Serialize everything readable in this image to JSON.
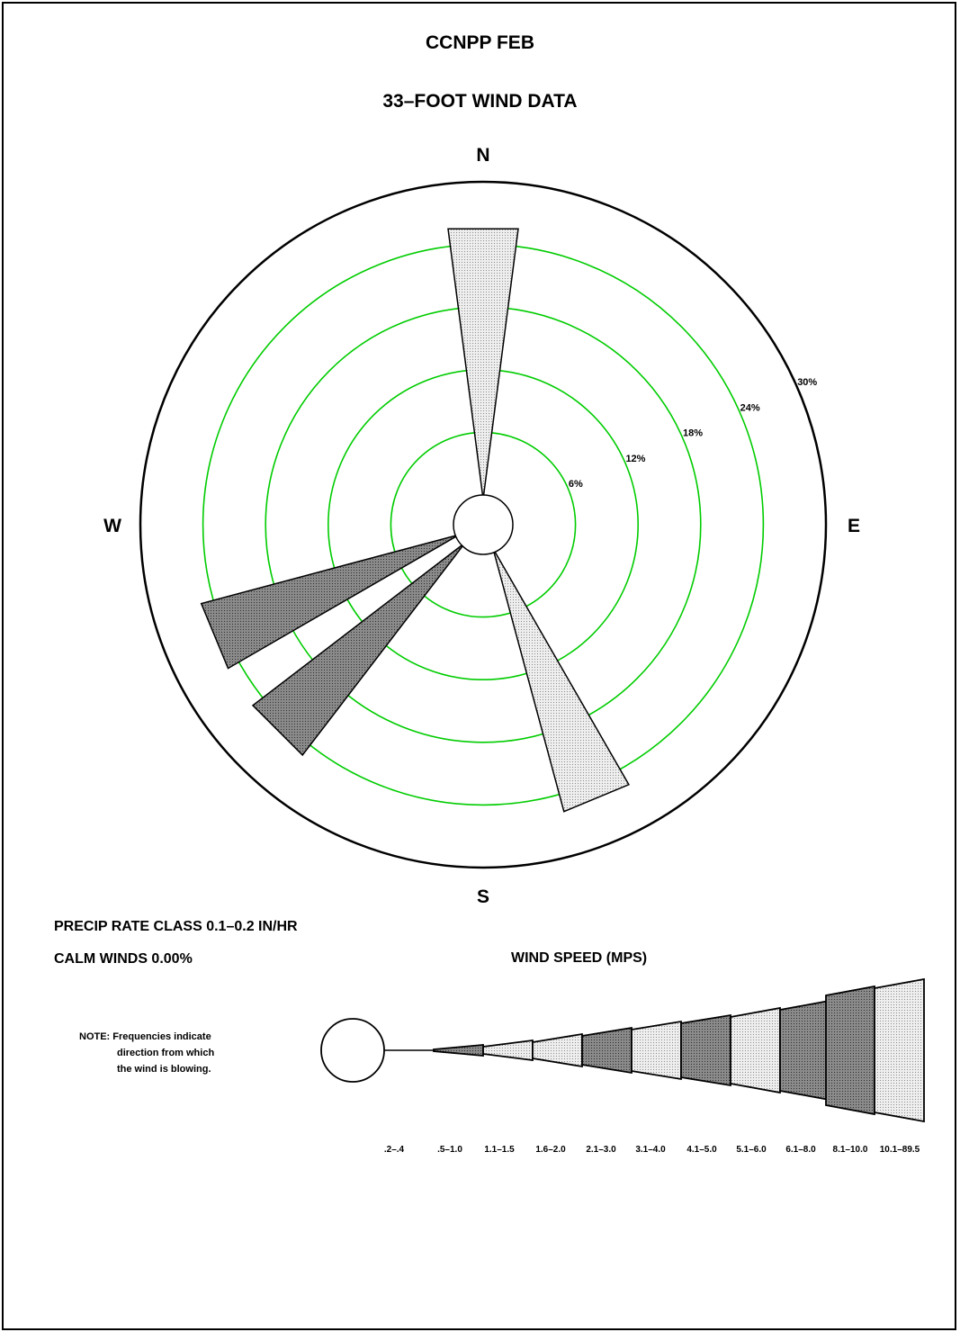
{
  "page": {
    "title": "CCNPP FEB",
    "subtitle": "33–FOOT WIND DATA",
    "precip_label": "PRECIP RATE CLASS 0.1–0.2  IN/HR",
    "calm_label": "CALM WINDS   0.00%",
    "note": [
      "NOTE:  Frequencies indicate",
      "direction from which",
      "the wind is blowing."
    ]
  },
  "chart_data": {
    "type": "wind-rose",
    "compass": [
      "N",
      "E",
      "S",
      "W"
    ],
    "radial_unit": "%",
    "ring_labels": [
      "6%",
      "12%",
      "18%",
      "24%",
      "30%"
    ],
    "rings": [
      6,
      12,
      18,
      24,
      30
    ],
    "rmax": 30,
    "petals": [
      {
        "direction": "N",
        "angle": 0,
        "frequency": 25.5,
        "speed_class": "10.1–89.5"
      },
      {
        "direction": "SSE",
        "angle": 157.5,
        "frequency": 25.5,
        "speed_class": "10.1–89.5"
      },
      {
        "direction": "SW",
        "angle": 225,
        "frequency": 25.0,
        "speed_class": "8.1–10.0"
      },
      {
        "direction": "WSW",
        "angle": 247.5,
        "frequency": 25.0,
        "speed_class": "8.1–10.0"
      }
    ],
    "legend": {
      "title": "WIND SPEED (MPS)",
      "classes": [
        ".2–.4",
        ".5–1.0",
        "1.1–1.5",
        "1.6–2.0",
        "2.1–3.0",
        "3.1–4.0",
        "4.1–5.0",
        "5.1–6.0",
        "6.1–8.0",
        "8.1–10.0",
        "10.1–89.5"
      ]
    },
    "colors": {
      "ring": "#00cc00",
      "dark_fill": "#707070",
      "light_fill": "#d8d8d8",
      "outline": "#000000"
    }
  }
}
